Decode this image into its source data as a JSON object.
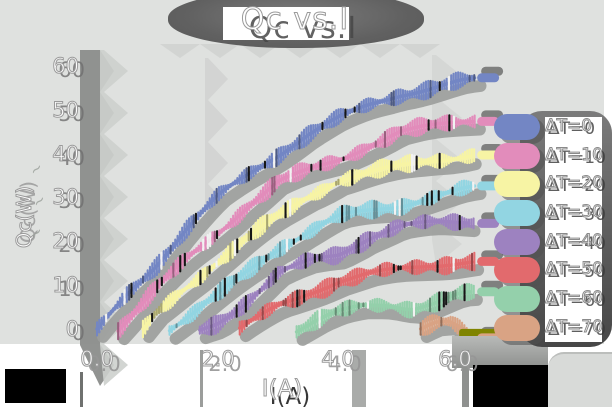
{
  "title": {
    "text": "Qc vs.I"
  },
  "axes": {
    "x_label": "I(A)",
    "y_label": "Qc(W)",
    "x_ticks": [
      "0.0",
      "2.0",
      "4.0",
      "6.0"
    ],
    "y_ticks": [
      "0",
      "10",
      "20",
      "30",
      "40",
      "50",
      "60"
    ]
  },
  "legend": {
    "position": "right",
    "items": [
      {
        "label": "ΔT=0",
        "color": "#7386c4"
      },
      {
        "label": "ΔT=10",
        "color": "#e28cbb"
      },
      {
        "label": "ΔT=20",
        "color": "#f7f4a4"
      },
      {
        "label": "ΔT=30",
        "color": "#92d5e2"
      },
      {
        "label": "ΔT=40",
        "color": "#9d82c0"
      },
      {
        "label": "ΔT=50",
        "color": "#e26a6d"
      },
      {
        "label": "ΔT=60",
        "color": "#94d0ab"
      },
      {
        "label": "ΔT=70",
        "color": "#d9a384"
      }
    ]
  },
  "chart_data": {
    "type": "line",
    "title": "Qc vs.I",
    "xlabel": "I(A)",
    "ylabel": "Qc(W)",
    "xlim": [
      0,
      6.5
    ],
    "ylim": [
      0,
      60
    ],
    "x_tick_values": [
      0,
      2,
      4,
      6
    ],
    "y_tick_values": [
      0,
      10,
      20,
      30,
      40,
      50,
      60
    ],
    "grid": false,
    "legend_position": "right",
    "series": [
      {
        "name": "ΔT=0",
        "color": "#7386c4",
        "points": [
          [
            0,
            0
          ],
          [
            0.5,
            8.5
          ],
          [
            1,
            15.5
          ],
          [
            1.5,
            23.5
          ],
          [
            2,
            30.5
          ],
          [
            2.5,
            35.5
          ],
          [
            3,
            40
          ],
          [
            3.5,
            44.5
          ],
          [
            4,
            48
          ],
          [
            4.5,
            51
          ],
          [
            5,
            53.5
          ],
          [
            5.5,
            55
          ],
          [
            6,
            56.5
          ],
          [
            6.25,
            57
          ]
        ]
      },
      {
        "name": "ΔT=10",
        "color": "#e28cbb",
        "points": [
          [
            0.35,
            0
          ],
          [
            1,
            9.5
          ],
          [
            1.5,
            16
          ],
          [
            2,
            22
          ],
          [
            2.5,
            28.5
          ],
          [
            3,
            34
          ],
          [
            3.5,
            36.5
          ],
          [
            4,
            39
          ],
          [
            4.5,
            42.5
          ],
          [
            5,
            45.5
          ],
          [
            5.5,
            46.5
          ],
          [
            6,
            47.5
          ],
          [
            6.25,
            48
          ]
        ]
      },
      {
        "name": "ΔT=20",
        "color": "#f7f4a4",
        "points": [
          [
            0.76,
            0
          ],
          [
            1,
            4.3
          ],
          [
            1.5,
            10.5
          ],
          [
            2,
            15.8
          ],
          [
            2.5,
            21
          ],
          [
            3,
            26
          ],
          [
            3.5,
            30.5
          ],
          [
            4,
            34
          ],
          [
            4.5,
            35.5
          ],
          [
            5,
            37
          ],
          [
            5.5,
            38.5
          ],
          [
            6,
            39.5
          ],
          [
            6.25,
            40
          ]
        ]
      },
      {
        "name": "ΔT=30",
        "color": "#92d5e2",
        "points": [
          [
            1.2,
            0
          ],
          [
            1.6,
            3.5
          ],
          [
            2,
            7.8
          ],
          [
            2.5,
            13.5
          ],
          [
            3,
            18.8
          ],
          [
            3.5,
            22.5
          ],
          [
            4,
            26
          ],
          [
            4.5,
            27.5
          ],
          [
            5,
            28.7
          ],
          [
            5.5,
            30.5
          ],
          [
            6,
            32
          ],
          [
            6.25,
            32.5
          ]
        ]
      },
      {
        "name": "ΔT=40",
        "color": "#9d82c0",
        "points": [
          [
            1.7,
            0
          ],
          [
            2,
            1.8
          ],
          [
            2.5,
            7
          ],
          [
            3,
            13
          ],
          [
            3.5,
            15.5
          ],
          [
            4,
            17
          ],
          [
            4.5,
            21
          ],
          [
            5,
            23.5
          ],
          [
            5.5,
            24
          ],
          [
            6,
            24.3
          ],
          [
            6.25,
            24.5
          ]
        ]
      },
      {
        "name": "ΔT=50",
        "color": "#e26a6d",
        "points": [
          [
            2.36,
            0
          ],
          [
            3,
            5.4
          ],
          [
            3.5,
            8.5
          ],
          [
            4,
            11.4
          ],
          [
            4.5,
            13
          ],
          [
            5,
            14
          ],
          [
            5.5,
            15
          ],
          [
            6,
            15.8
          ],
          [
            6.25,
            16
          ]
        ]
      },
      {
        "name": "ΔT=60",
        "color": "#94d0ab",
        "points": [
          [
            3.3,
            0
          ],
          [
            3.7,
            2.5
          ],
          [
            4,
            3.9
          ],
          [
            4.4,
            5.2
          ],
          [
            4.8,
            5.6
          ],
          [
            5.2,
            4.8
          ],
          [
            5.6,
            6
          ],
          [
            6,
            7.8
          ],
          [
            6.25,
            8
          ]
        ]
      },
      {
        "name": "ΔT=70",
        "color": "#d9a384",
        "endcap_artifact_color": "#7f8400",
        "points": [
          [
            5.35,
            0
          ],
          [
            5.6,
            1.6
          ],
          [
            5.85,
            2
          ],
          [
            6.05,
            0.3
          ],
          [
            6.25,
            -1.2
          ]
        ]
      }
    ]
  }
}
